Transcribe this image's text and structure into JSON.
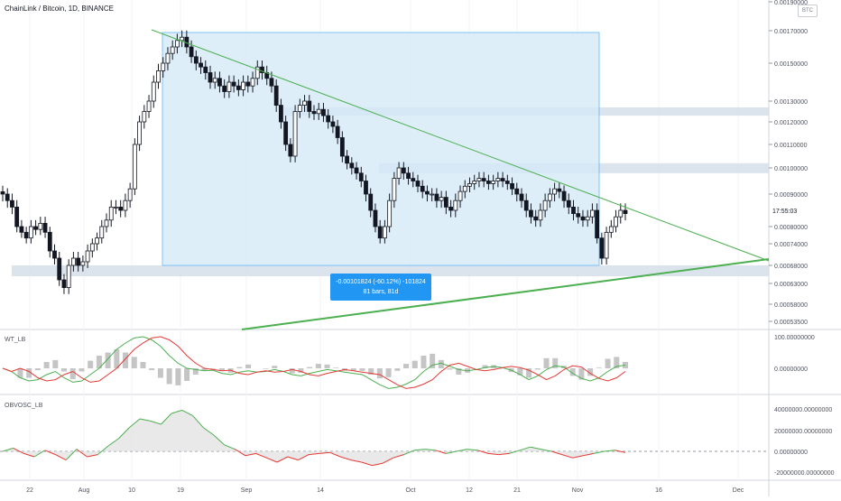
{
  "title": "ChainLink / Bitcoin, 1D, BINANCE",
  "currency_badge": "BTC",
  "countdown": "17:55:03",
  "indicator_labels": {
    "wt": "WT_LB",
    "obvosc": "OBVOSC_LB"
  },
  "measurement": {
    "change": "-0.00101824 (-60.12%) -101824",
    "span": "81 bars, 81d"
  },
  "colors": {
    "up": "#131722",
    "down": "#131722",
    "trend": "#4caf50",
    "zone": "#d5deea",
    "range_box": "#d6eaf8",
    "wt1": "#4caf50",
    "wt2": "#e53935",
    "obv_up": "#4caf50",
    "obv_down": "#e53935"
  },
  "chart_data": [
    {
      "type": "candlestick",
      "price_axis_ticks": [
        "0.00190000",
        "0.00170000",
        "0.00150000",
        "0.00130000",
        "0.00120000",
        "0.00110000",
        "0.00100000",
        "0.00090000",
        "0.00080000",
        "0.00074000",
        "0.00068000",
        "0.00063000",
        "0.00058000",
        "0.00053500"
      ],
      "time_axis_ticks": [
        "22",
        "Aug",
        "10",
        "19",
        "Sep",
        "14",
        "Oct",
        "12",
        "21",
        "Nov",
        "16",
        "Dec"
      ],
      "series": [
        {
          "name": "LINK/BTC",
          "close": [
            0.0009,
            0.00088,
            0.00086,
            0.0008,
            0.00078,
            0.00076,
            0.0008,
            0.00079,
            0.00081,
            0.00078,
            0.00072,
            0.0007,
            0.00064,
            0.00062,
            0.00068,
            0.0007,
            0.00068,
            0.00069,
            0.00072,
            0.00074,
            0.00076,
            0.0008,
            0.00082,
            0.00086,
            0.00086,
            0.00085,
            0.00088,
            0.00092,
            0.0011,
            0.0012,
            0.00125,
            0.0013,
            0.0014,
            0.00146,
            0.0015,
            0.00156,
            0.0016,
            0.00164,
            0.00166,
            0.0016,
            0.00154,
            0.0015,
            0.00148,
            0.00145,
            0.0014,
            0.00142,
            0.00138,
            0.00135,
            0.0014,
            0.00138,
            0.00136,
            0.0014,
            0.00138,
            0.00142,
            0.00148,
            0.00145,
            0.00142,
            0.00138,
            0.00128,
            0.0012,
            0.0011,
            0.00105,
            0.00125,
            0.00128,
            0.0013,
            0.00125,
            0.00124,
            0.00126,
            0.00123,
            0.0012,
            0.00118,
            0.00113,
            0.00105,
            0.00102,
            0.001,
            0.00098,
            0.00095,
            0.0009,
            0.00085,
            0.0008,
            0.00076,
            0.0008,
            0.00088,
            0.00096,
            0.001,
            0.00098,
            0.00096,
            0.00095,
            0.00093,
            0.00091,
            0.0009,
            0.0009,
            0.00088,
            0.00089,
            0.00086,
            0.00085,
            0.00088,
            0.00091,
            0.00093,
            0.00094,
            0.00095,
            0.00096,
            0.00095,
            0.00094,
            0.00095,
            0.00096,
            0.00095,
            0.00094,
            0.00092,
            0.0009,
            0.00088,
            0.00085,
            0.00083,
            0.00082,
            0.00085,
            0.00088,
            0.0009,
            0.00092,
            0.00091,
            0.00088,
            0.00086,
            0.00084,
            0.00083,
            0.00082,
            0.00083,
            0.00085,
            0.00076,
            0.0007,
            0.00078,
            0.0008,
            0.00083,
            0.00085,
            0.00084
          ]
        }
      ],
      "ylim": [
        0.000535,
        0.0019
      ],
      "trend_line_upper": [
        [
          0.0017,
          0.00068
        ]
      ],
      "support_zones": [
        [
          0.00068,
          0.00065
        ],
        [
          0.00127,
          0.00123
        ],
        [
          0.00102,
          0.00098
        ]
      ]
    },
    {
      "type": "line",
      "name": "WT_LB",
      "y_axis_ticks": [
        "100.00000000",
        "0.00000000"
      ],
      "series": [
        {
          "name": "wt1",
          "values": [
            0,
            -5,
            -15,
            -20,
            -18,
            -10,
            -5,
            -15,
            -22,
            -20,
            -10,
            0,
            15,
            30,
            40,
            48,
            50,
            45,
            35,
            20,
            8,
            0,
            -2,
            -4,
            -3,
            -8,
            -10,
            -6,
            -4,
            -6,
            -5,
            -2,
            -5,
            -10,
            -12,
            -8,
            -5,
            -2,
            -4,
            -6,
            -8,
            -10,
            -18,
            -26,
            -32,
            -30,
            -25,
            -18,
            -5,
            5,
            8,
            3,
            -2,
            -4,
            -2,
            1,
            3,
            1,
            -3,
            -10,
            -18,
            -12,
            -2,
            4,
            2,
            -8,
            -16,
            -20,
            -15,
            -5,
            3,
            5
          ]
        }
      ]
    },
    {
      "type": "area",
      "name": "OBVOSC_LB",
      "y_axis_ticks": [
        "40000000.00000000",
        "20000000.00000000",
        "0.00000000",
        "-20000000.00000000"
      ],
      "series": [
        {
          "name": "obvosc",
          "values": [
            0,
            3,
            -2,
            -5,
            1,
            -3,
            -8,
            2,
            -5,
            -3,
            5,
            12,
            22,
            30,
            28,
            25,
            35,
            38,
            33,
            22,
            15,
            6,
            2,
            -4,
            -2,
            -6,
            -10,
            -5,
            -8,
            -3,
            -2,
            -1,
            -5,
            -8,
            -10,
            -13,
            -11,
            -6,
            -3,
            1,
            2,
            1,
            -2,
            0,
            2,
            1,
            -2,
            -3,
            -2,
            1,
            4,
            2,
            0,
            -3,
            -6,
            -4,
            -2,
            0,
            1,
            -1
          ]
        }
      ]
    }
  ]
}
